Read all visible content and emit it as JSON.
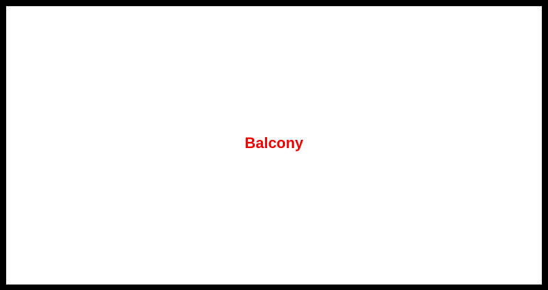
{
  "room": {
    "label": "Balcony",
    "label_color": "#ee0000",
    "fill_color": "#ffffff",
    "wall_color": "#000000"
  }
}
